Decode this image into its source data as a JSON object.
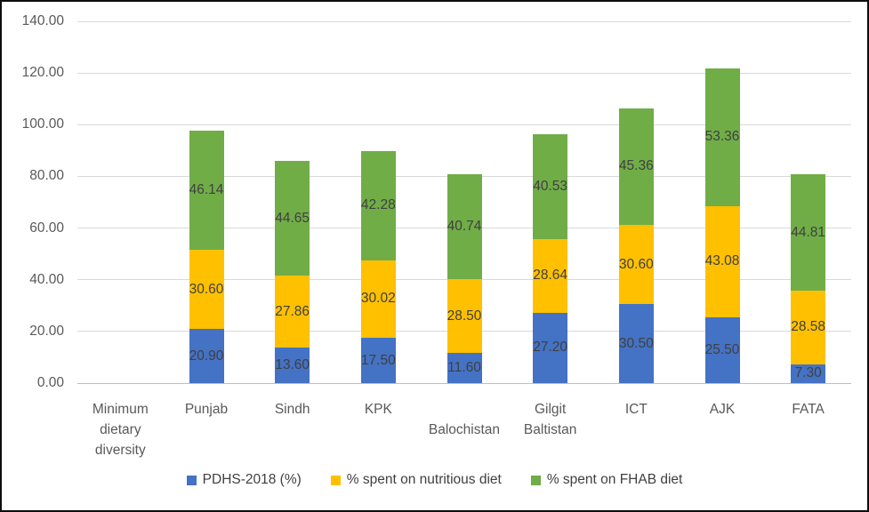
{
  "chart_data": {
    "type": "bar",
    "subtype": "stacked-column",
    "title": "",
    "categories": [
      {
        "label": "Minimum dietary diversity",
        "lines": [
          "Minimum",
          "dietary",
          "diversity"
        ],
        "row": 0
      },
      {
        "label": "Punjab",
        "lines": [
          "Punjab"
        ],
        "row": 0
      },
      {
        "label": "Sindh",
        "lines": [
          "Sindh"
        ],
        "row": 0
      },
      {
        "label": "KPK",
        "lines": [
          "KPK"
        ],
        "row": 0
      },
      {
        "label": "Balochistan",
        "lines": [
          "Balochistan"
        ],
        "row": 1
      },
      {
        "label": "Gilgit Baltistan",
        "lines": [
          "Gilgit",
          "Baltistan"
        ],
        "row": 0
      },
      {
        "label": "ICT",
        "lines": [
          "ICT"
        ],
        "row": 0
      },
      {
        "label": "AJK",
        "lines": [
          "AJK"
        ],
        "row": 0
      },
      {
        "label": "FATA",
        "lines": [
          "FATA"
        ],
        "row": 0
      }
    ],
    "series": [
      {
        "name": "PDHS-2018 (%)",
        "color": "#4472C4",
        "values": [
          null,
          20.9,
          13.6,
          17.5,
          11.6,
          27.2,
          30.5,
          25.5,
          7.3
        ]
      },
      {
        "name": "% spent on nutritious diet",
        "color": "#FFC000",
        "values": [
          null,
          30.6,
          27.86,
          30.02,
          28.5,
          28.64,
          30.6,
          43.08,
          28.58
        ]
      },
      {
        "name": "% spent on FHAB diet",
        "color": "#70AD47",
        "values": [
          null,
          46.14,
          44.65,
          42.28,
          40.74,
          40.53,
          45.36,
          53.36,
          44.81
        ]
      }
    ],
    "y_axis": {
      "min": 0,
      "max": 140,
      "step": 20,
      "tick_labels": [
        "0.00",
        "20.00",
        "40.00",
        "60.00",
        "80.00",
        "100.00",
        "120.00",
        "140.00"
      ]
    },
    "data_label_decimals": 2,
    "grid": true,
    "legend_position": "bottom",
    "style": {
      "gridline_color": "#D9D9D9",
      "axis_line_color": "#BFBFBF",
      "axis_text_color": "#595959",
      "data_label_color": "#404040",
      "border_color": "#0D0D0D",
      "background": "#FFFFFF"
    }
  }
}
